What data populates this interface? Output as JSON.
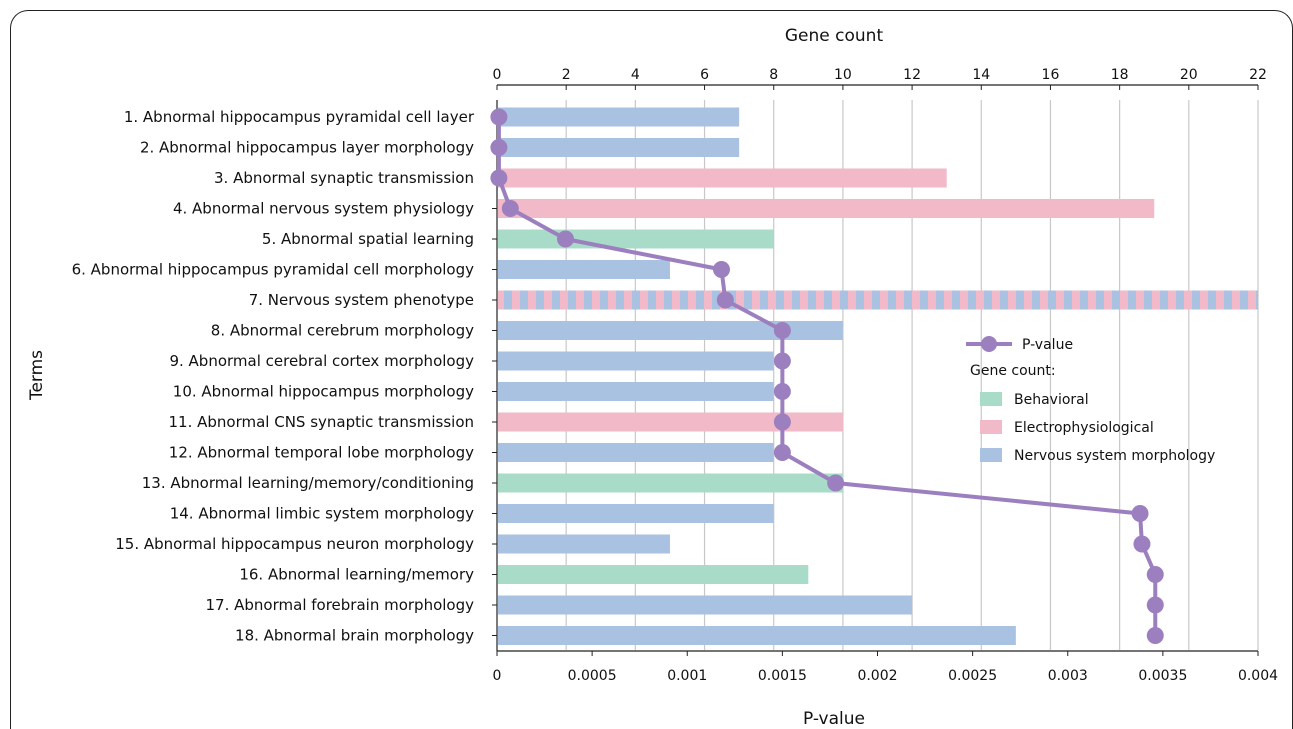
{
  "chart_data": {
    "type": "bar",
    "top_axis_label": "Gene count",
    "bottom_axis_label": "P-value",
    "y_axis_label": "Terms",
    "gene_count_range": [
      0,
      22
    ],
    "gene_count_ticks": [
      "0",
      "2",
      "4",
      "6",
      "8",
      "10",
      "12",
      "14",
      "16",
      "18",
      "20",
      "22"
    ],
    "pvalue_range": [
      0,
      0.004
    ],
    "pvalue_ticks": [
      "0",
      "0.0005",
      "0.001",
      "0.0015",
      "0.002",
      "0.0025",
      "0.003",
      "0.0035",
      "0.004"
    ],
    "grid": "vertical",
    "legend": {
      "placement": "right",
      "line_label": "P-value",
      "title": "Gene count:",
      "entries": [
        {
          "key": "behavioral",
          "label": "Behavioral"
        },
        {
          "key": "electro",
          "label": "Electrophysiological"
        },
        {
          "key": "nervous",
          "label": "Nervous system morphology"
        }
      ]
    },
    "colors": {
      "behavioral": "#a8dcc8",
      "electro": "#f2b9c8",
      "nervous": "#a9c2e1",
      "line": "#9b7fbf",
      "grid": "#c8c8c8"
    },
    "terms": [
      {
        "label": "1. Abnormal hippocampus pyramidal cell layer",
        "gene_count": 7,
        "p_value": 1e-05,
        "category": "nervous"
      },
      {
        "label": "2. Abnormal hippocampus layer morphology",
        "gene_count": 7,
        "p_value": 1e-05,
        "category": "nervous"
      },
      {
        "label": "3. Abnormal synaptic transmission",
        "gene_count": 13,
        "p_value": 1e-05,
        "category": "electro"
      },
      {
        "label": "4. Abnormal nervous system physiology",
        "gene_count": 19,
        "p_value": 7e-05,
        "category": "electro"
      },
      {
        "label": "5. Abnormal spatial learning",
        "gene_count": 8,
        "p_value": 0.00036,
        "category": "behavioral"
      },
      {
        "label": "6. Abnormal hippocampus pyramidal cell morphology",
        "gene_count": 5,
        "p_value": 0.00118,
        "category": "nervous"
      },
      {
        "label": "7. Nervous system phenotype",
        "gene_count": 22,
        "p_value": 0.0012,
        "category": "mixed"
      },
      {
        "label": "8. Abnormal cerebrum morphology",
        "gene_count": 10,
        "p_value": 0.0015,
        "category": "nervous"
      },
      {
        "label": "9. Abnormal cerebral cortex morphology",
        "gene_count": 8,
        "p_value": 0.0015,
        "category": "nervous"
      },
      {
        "label": "10. Abnormal hippocampus morphology",
        "gene_count": 8,
        "p_value": 0.0015,
        "category": "nervous"
      },
      {
        "label": "11. Abnormal CNS synaptic transmission",
        "gene_count": 10,
        "p_value": 0.0015,
        "category": "electro"
      },
      {
        "label": "12. Abnormal temporal lobe morphology",
        "gene_count": 8,
        "p_value": 0.0015,
        "category": "nervous"
      },
      {
        "label": "13. Abnormal learning/memory/conditioning",
        "gene_count": 10,
        "p_value": 0.00178,
        "category": "behavioral"
      },
      {
        "label": "14. Abnormal limbic system morphology",
        "gene_count": 8,
        "p_value": 0.00338,
        "category": "nervous"
      },
      {
        "label": "15. Abnormal hippocampus neuron morphology",
        "gene_count": 5,
        "p_value": 0.00339,
        "category": "nervous"
      },
      {
        "label": "16. Abnormal learning/memory",
        "gene_count": 9,
        "p_value": 0.00346,
        "category": "behavioral"
      },
      {
        "label": "17. Abnormal forebrain morphology",
        "gene_count": 12,
        "p_value": 0.00346,
        "category": "nervous"
      },
      {
        "label": "18. Abnormal brain morphology",
        "gene_count": 15,
        "p_value": 0.00346,
        "category": "nervous"
      }
    ]
  }
}
